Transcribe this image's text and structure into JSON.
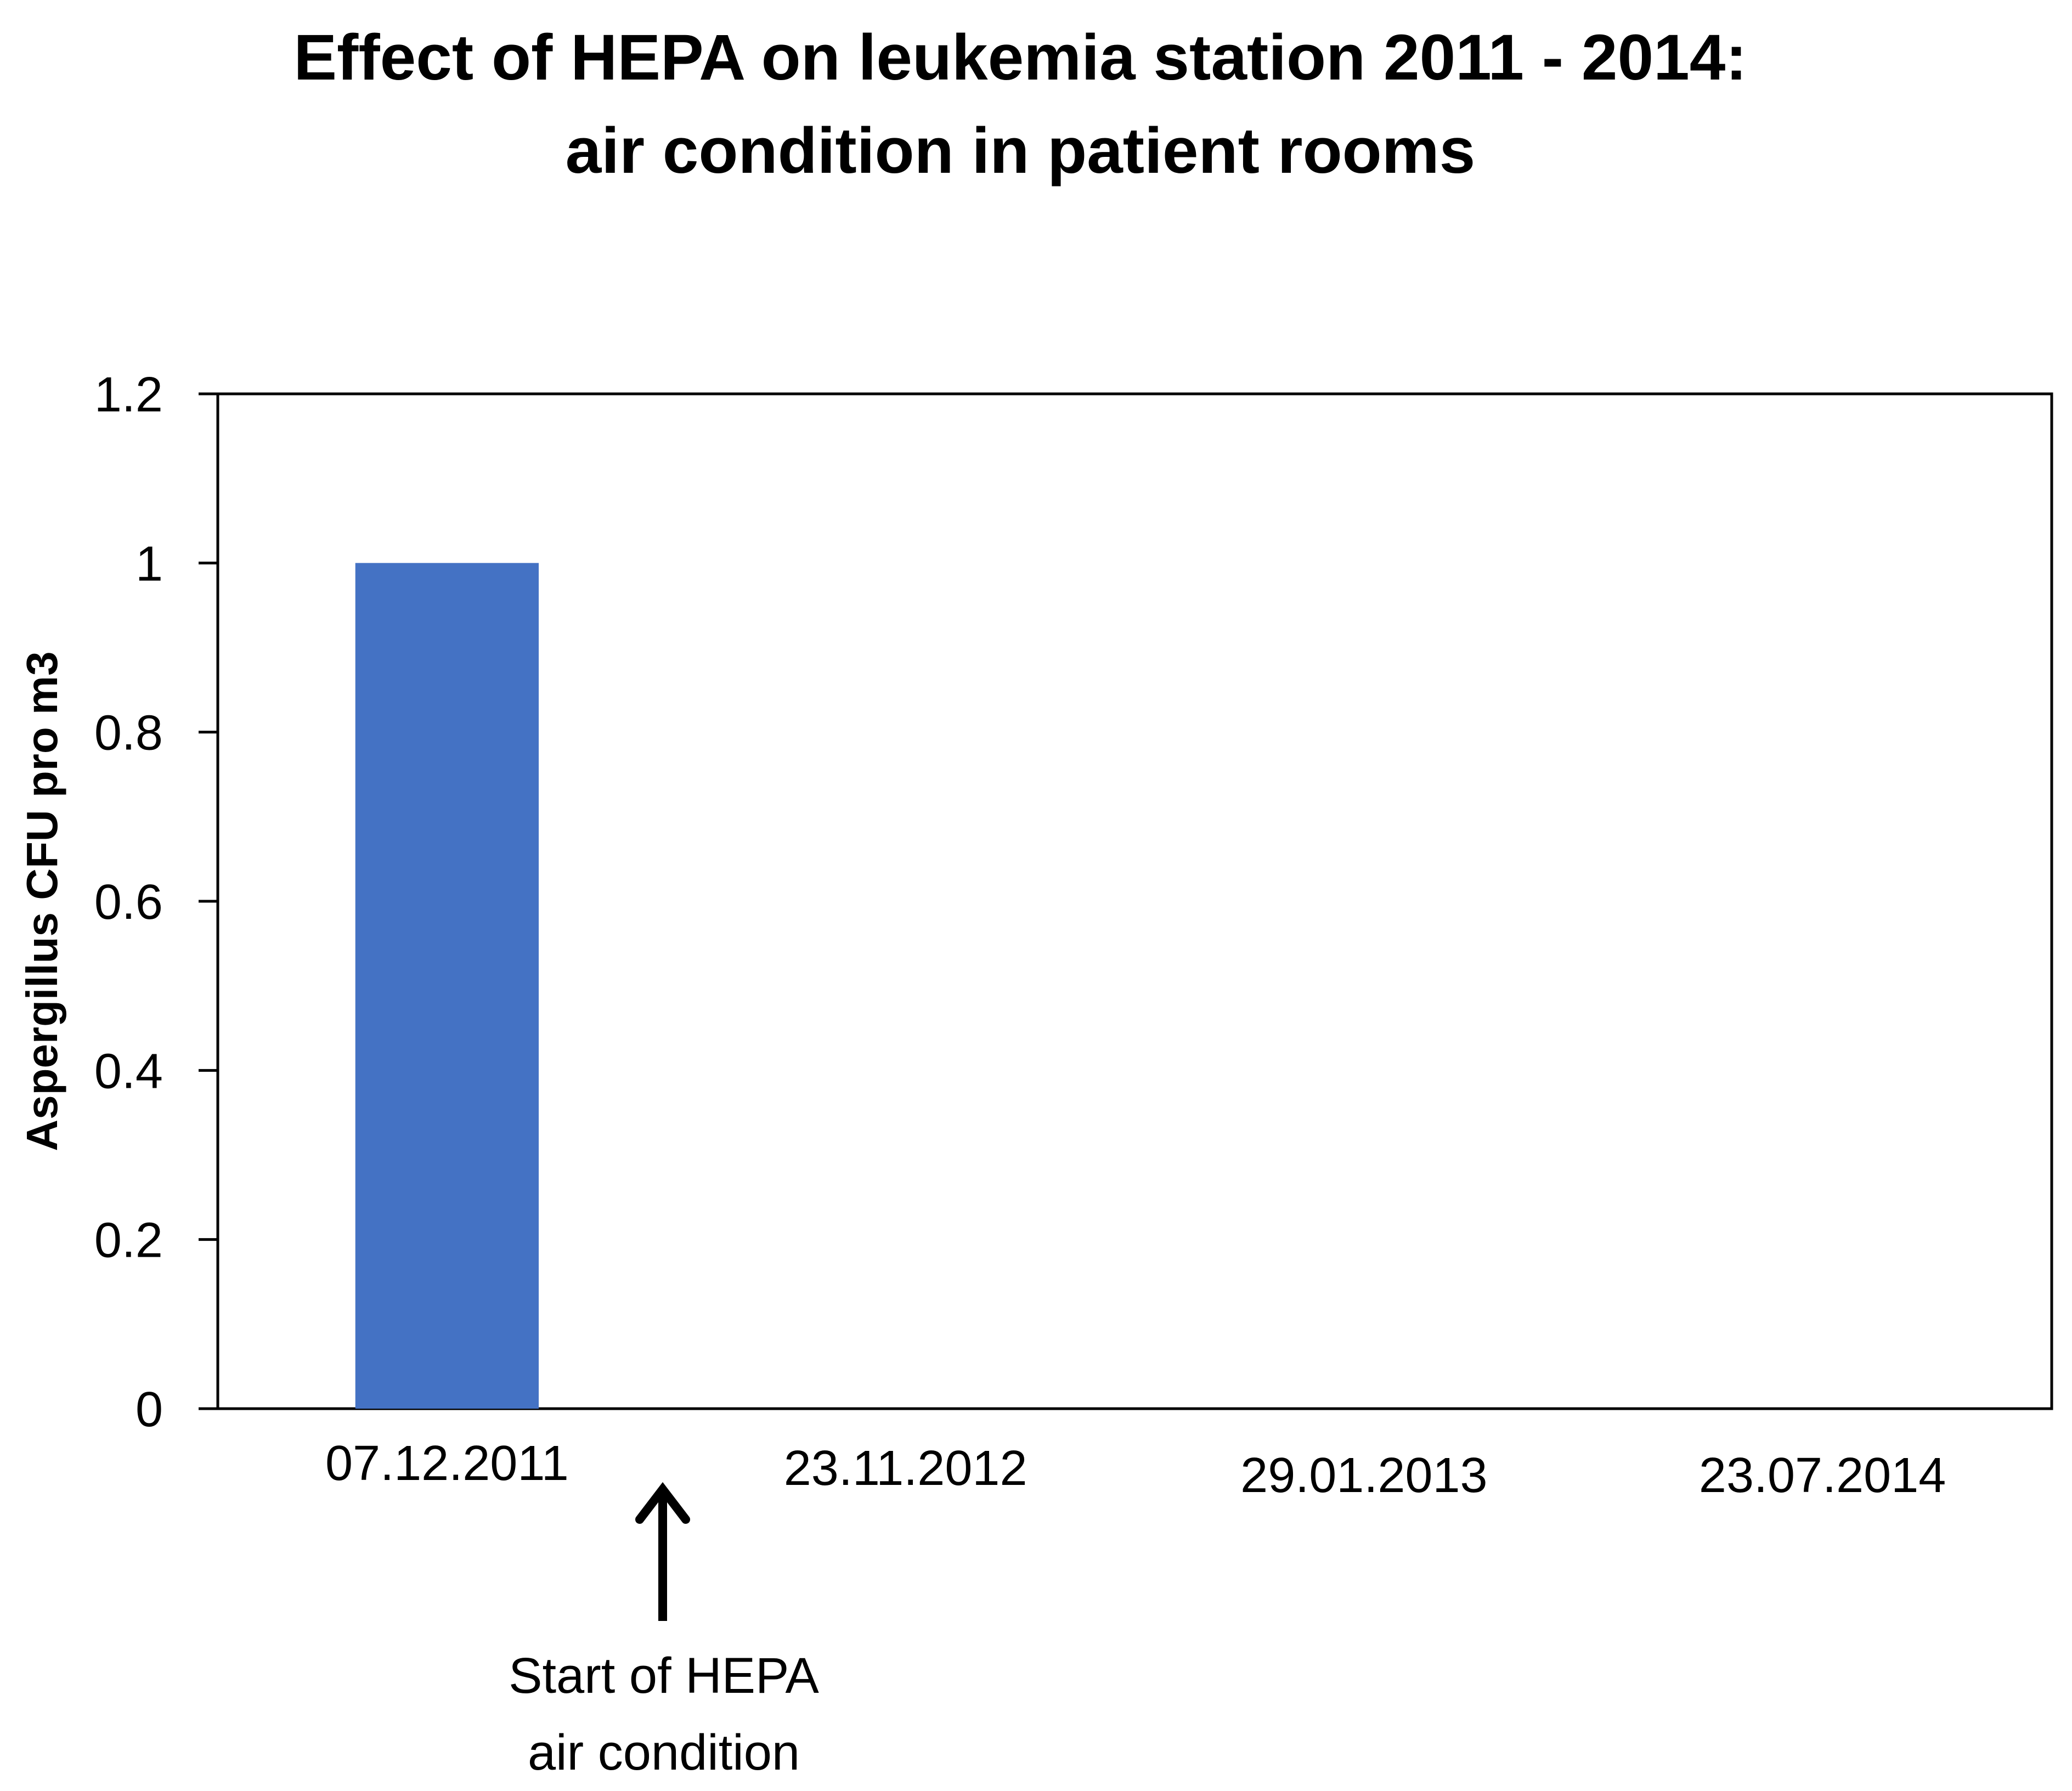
{
  "chart_data": {
    "type": "bar",
    "title_lines": [
      "Effect of HEPA on leukemia station 2011 - 2014:",
      "air condition in patient rooms"
    ],
    "xlabel": "",
    "ylabel": "Aspergillus CFU pro m3",
    "categories": [
      "07.12.2011",
      "23.11.2012",
      "29.01.2013",
      "23.07.2014"
    ],
    "values": [
      1,
      0,
      0,
      0
    ],
    "ylim": [
      0,
      1.2
    ],
    "yticks": [
      0,
      0.2,
      0.4,
      0.6,
      0.8,
      1,
      1.2
    ],
    "ytick_labels": [
      "0",
      "0.2",
      "0.4",
      "0.6",
      "0.8",
      "1",
      "1.2"
    ],
    "grid": false,
    "legend": "none",
    "annotation": {
      "lines": [
        "Start of HEPA",
        "air condition"
      ],
      "arrow_direction": "up",
      "position": "between 07.12.2011 and 23.11.2012"
    },
    "bar_color": "#4472C4"
  }
}
